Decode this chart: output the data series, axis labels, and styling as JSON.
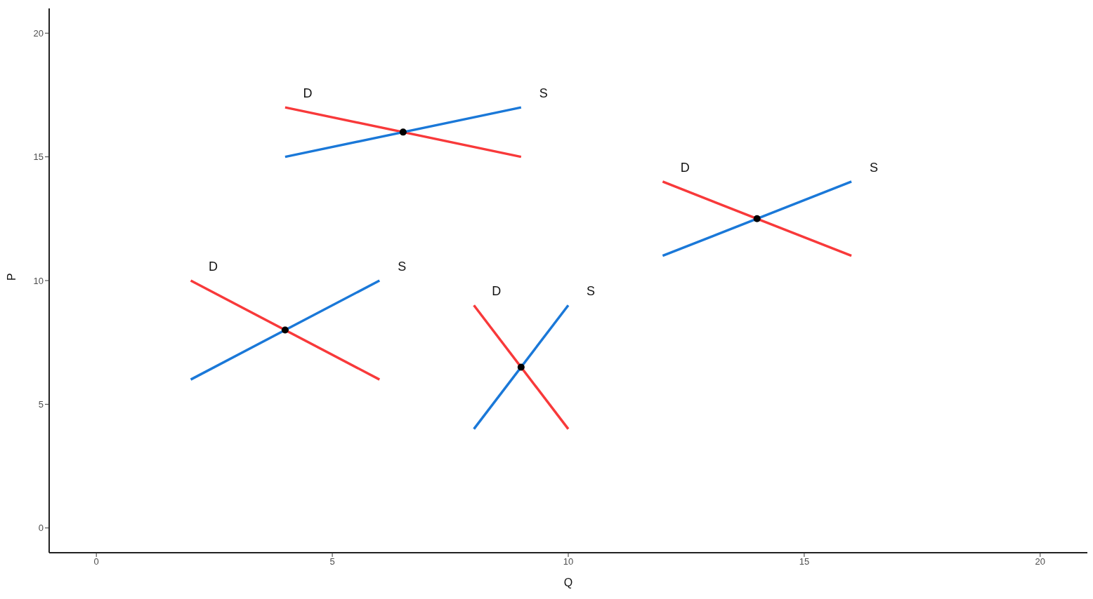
{
  "chart_data": {
    "type": "line",
    "xlabel": "Q",
    "ylabel": "P",
    "xlim": [
      -1,
      21
    ],
    "ylim": [
      -1,
      21
    ],
    "xticks": [
      0,
      5,
      10,
      15,
      20
    ],
    "yticks": [
      0,
      5,
      10,
      15,
      20
    ],
    "grid": false,
    "legend": false,
    "marker": "none",
    "line_style": "solid",
    "series": [
      {
        "name": "D",
        "color": "#f8393a",
        "x": [
          4,
          9
        ],
        "values": [
          17,
          15
        ]
      },
      {
        "name": "S",
        "color": "#1a78d8",
        "x": [
          4,
          9
        ],
        "values": [
          15,
          17
        ]
      },
      {
        "name": "D",
        "color": "#f8393a",
        "x": [
          2,
          6
        ],
        "values": [
          10,
          6
        ]
      },
      {
        "name": "S",
        "color": "#1a78d8",
        "x": [
          2,
          6
        ],
        "values": [
          6,
          10
        ]
      },
      {
        "name": "D",
        "color": "#f8393a",
        "x": [
          8,
          10
        ],
        "values": [
          9,
          4
        ]
      },
      {
        "name": "S",
        "color": "#1a78d8",
        "x": [
          8,
          10
        ],
        "values": [
          4,
          9
        ]
      },
      {
        "name": "D",
        "color": "#f8393a",
        "x": [
          12,
          16
        ],
        "values": [
          14,
          11
        ]
      },
      {
        "name": "S",
        "color": "#1a78d8",
        "x": [
          12,
          16
        ],
        "values": [
          11,
          14
        ]
      },
      {
        "type": "scatter",
        "color": "#000000",
        "marker": "circle",
        "x": [
          6.5,
          4,
          9,
          14
        ],
        "values": [
          16,
          8,
          6.5,
          12.5
        ]
      }
    ]
  }
}
